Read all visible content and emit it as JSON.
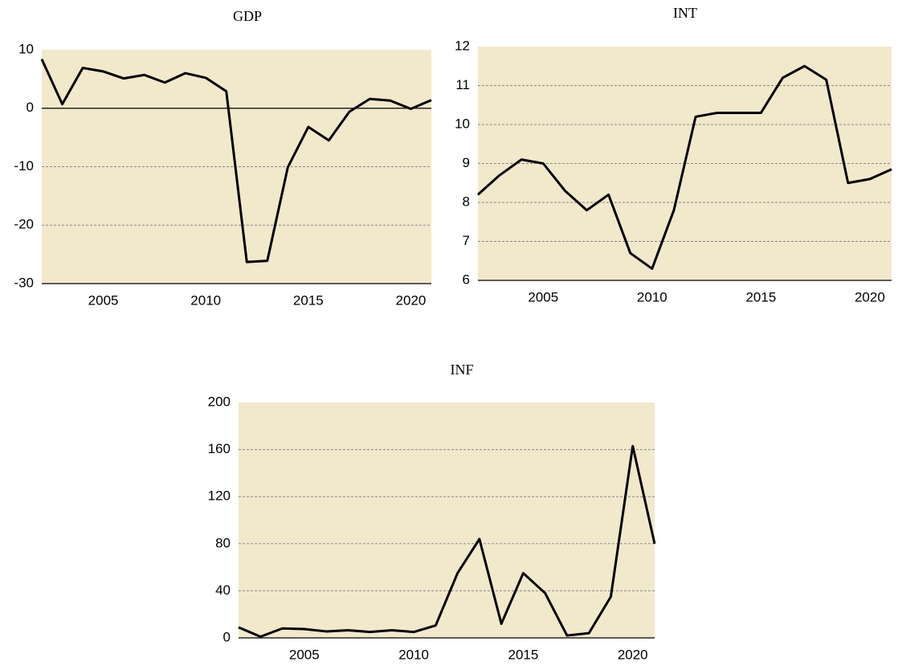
{
  "chart_data": [
    {
      "type": "line",
      "title": "GDP",
      "x": [
        2002,
        2003,
        2004,
        2005,
        2006,
        2007,
        2008,
        2009,
        2010,
        2011,
        2012,
        2013,
        2014,
        2015,
        2016,
        2017,
        2018,
        2019,
        2020,
        2021
      ],
      "series": [
        {
          "color": "#000000",
          "values": [
            8.4,
            0.7,
            6.9,
            6.3,
            5.1,
            5.7,
            4.4,
            6.0,
            5.2,
            2.9,
            -26.3,
            -26.1,
            -10.1,
            -3.2,
            -5.5,
            -0.6,
            1.6,
            1.3,
            -0.1,
            1.4
          ]
        }
      ],
      "xlim": [
        2002,
        2021
      ],
      "xticks": [
        2005,
        2010,
        2015,
        2020
      ],
      "ylim": [
        -30,
        10
      ],
      "yticks": [
        -30,
        -20,
        -10,
        0,
        10
      ],
      "grid": true,
      "background": "#f2e8cc"
    },
    {
      "type": "line",
      "title": "INT",
      "x": [
        2002,
        2003,
        2004,
        2005,
        2006,
        2007,
        2008,
        2009,
        2010,
        2011,
        2012,
        2013,
        2014,
        2015,
        2016,
        2017,
        2018,
        2019,
        2020,
        2021
      ],
      "series": [
        {
          "color": "#000000",
          "values": [
            8.2,
            8.7,
            9.1,
            9.0,
            8.3,
            7.8,
            8.2,
            6.7,
            6.3,
            7.8,
            10.2,
            10.3,
            10.3,
            10.3,
            11.2,
            11.5,
            11.15,
            8.5,
            8.6,
            8.85
          ]
        }
      ],
      "xlim": [
        2002,
        2021
      ],
      "xticks": [
        2005,
        2010,
        2015,
        2020
      ],
      "ylim": [
        6,
        12
      ],
      "yticks": [
        6,
        7,
        8,
        9,
        10,
        11,
        12
      ],
      "grid": true,
      "background": "#f2e8cc"
    },
    {
      "type": "line",
      "title": "INF",
      "x": [
        2002,
        2003,
        2004,
        2005,
        2006,
        2007,
        2008,
        2009,
        2010,
        2011,
        2012,
        2013,
        2014,
        2015,
        2016,
        2017,
        2018,
        2019,
        2020,
        2021
      ],
      "series": [
        {
          "color": "#000000",
          "values": [
            9,
            1,
            8,
            7.5,
            5.5,
            6.5,
            5,
            6.5,
            5,
            10.5,
            55,
            84,
            12,
            55,
            38,
            2,
            4,
            35,
            163,
            80
          ]
        }
      ],
      "xlim": [
        2002,
        2021
      ],
      "xticks": [
        2005,
        2010,
        2015,
        2020
      ],
      "ylim": [
        0,
        200
      ],
      "yticks": [
        0,
        40,
        80,
        120,
        160,
        200
      ],
      "grid": true,
      "background": "#f2e8cc"
    }
  ]
}
